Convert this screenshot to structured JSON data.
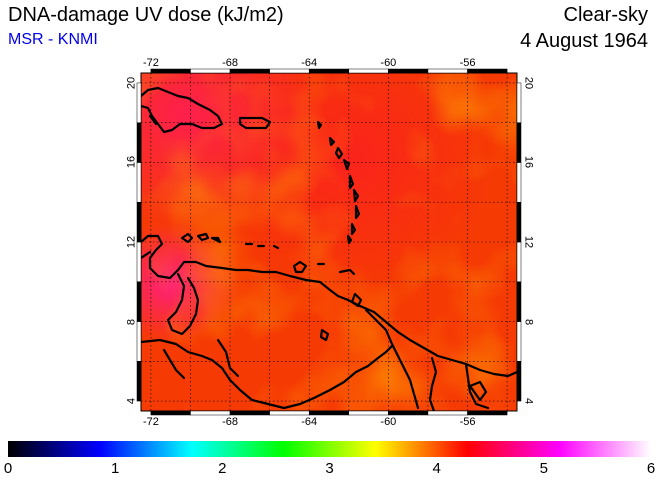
{
  "header": {
    "title": "DNA-damage UV dose (kJ/m2)",
    "subtitle": "MSR - KNMI",
    "condition": "Clear-sky",
    "date": "4 August 1964"
  },
  "map": {
    "lon_range": [
      -72.5,
      -53.5
    ],
    "lat_range": [
      3.5,
      20.5
    ],
    "lon_ticks": [
      "-72",
      "-68",
      "-64",
      "-60",
      "-56"
    ],
    "lat_ticks": [
      "4",
      "8",
      "12",
      "16",
      "20"
    ],
    "grid": "dotted 2-degree",
    "field_colors": {
      "base": "#f83800",
      "high": "#ff0058",
      "low": "#ff6a00"
    }
  },
  "colorbar": {
    "labels": [
      "0",
      "1",
      "2",
      "3",
      "4",
      "5",
      "6"
    ],
    "stops": [
      "#000000",
      "#0000ff",
      "#00ffff",
      "#00ff00",
      "#ffff00",
      "#ff0000",
      "#ff00ff",
      "#ffffff"
    ]
  }
}
